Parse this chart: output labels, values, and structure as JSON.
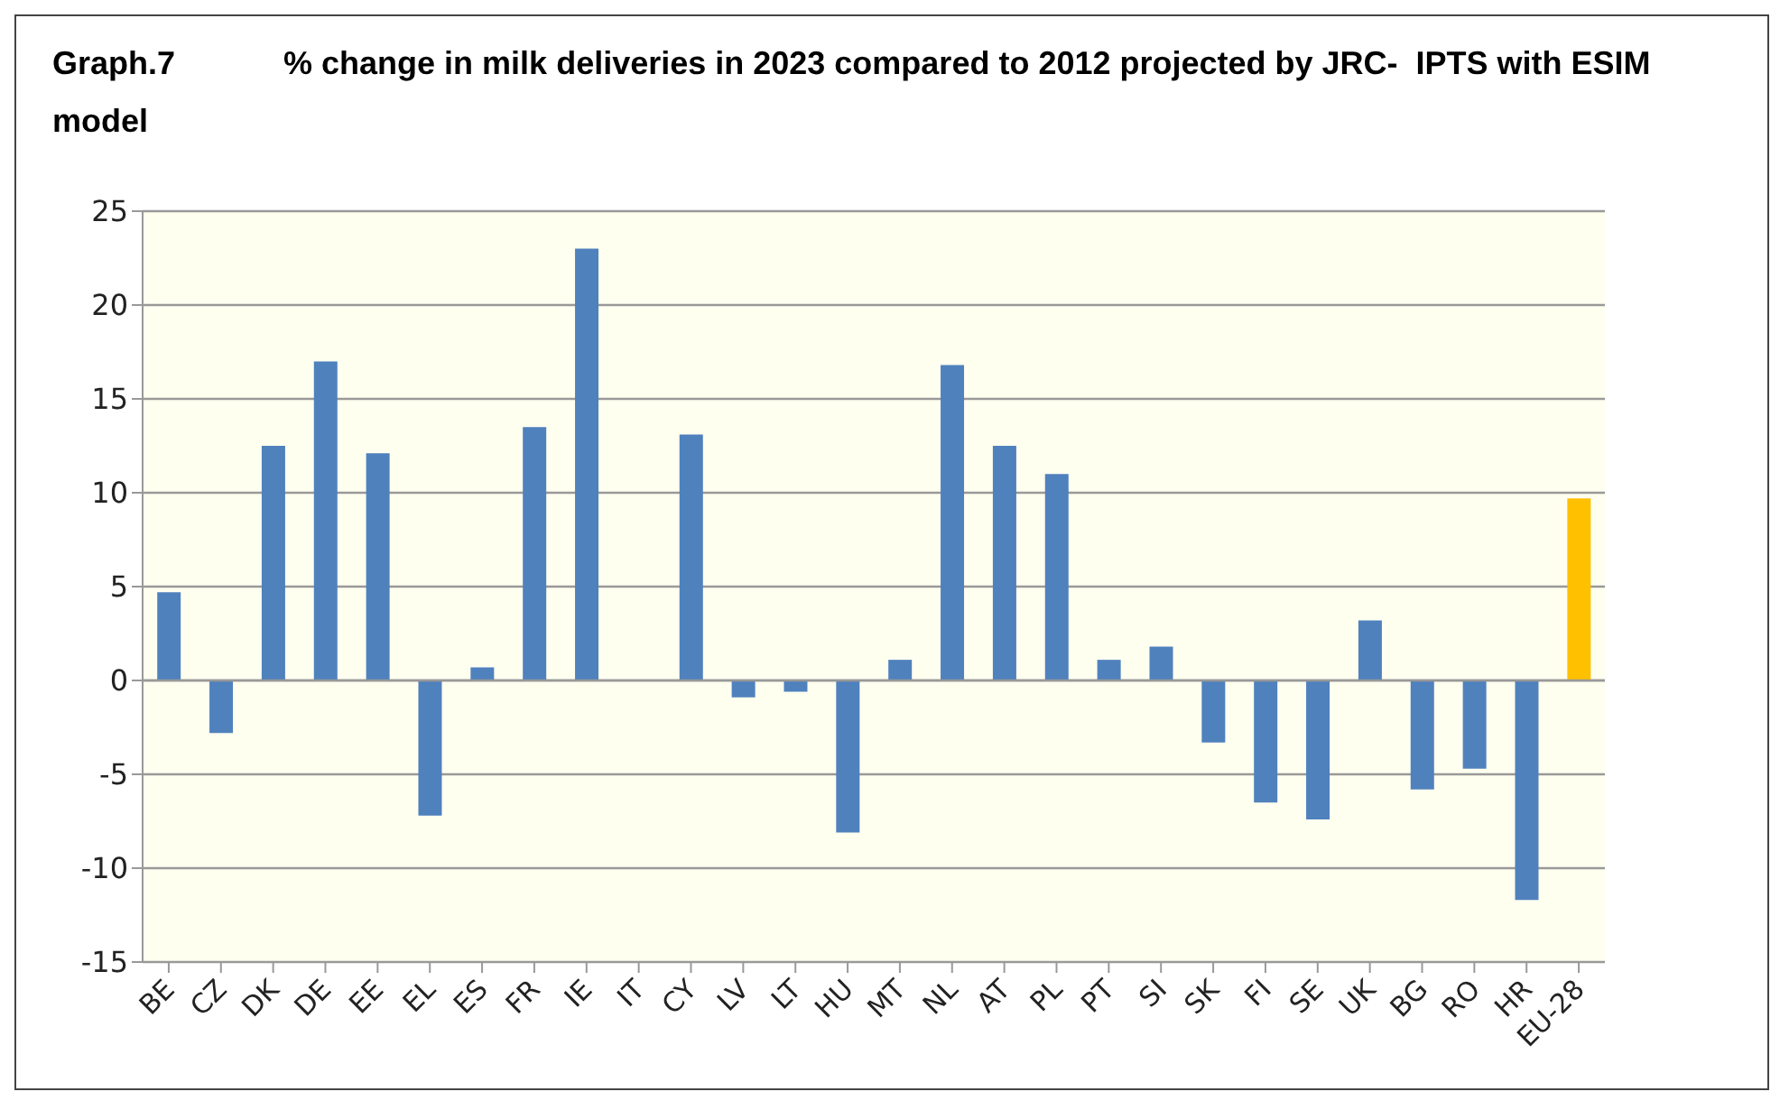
{
  "chart_data": {
    "type": "bar",
    "title": "Graph.7            % change in milk deliveries in 2023 compared to 2012 projected by JRC-  IPTS with ESIM model",
    "categories": [
      "BE",
      "CZ",
      "DK",
      "DE",
      "EE",
      "EL",
      "ES",
      "FR",
      "IE",
      "IT",
      "CY",
      "LV",
      "LT",
      "HU",
      "MT",
      "NL",
      "AT",
      "PL",
      "PT",
      "SI",
      "SK",
      "FI",
      "SE",
      "UK",
      "BG",
      "RO",
      "HR",
      "EU-28"
    ],
    "values": [
      4.7,
      -2.8,
      12.5,
      17,
      12.1,
      -7.2,
      0.7,
      13.5,
      23,
      0,
      13.1,
      -0.9,
      -0.6,
      -8.1,
      1.1,
      16.8,
      12.5,
      11,
      1.1,
      1.8,
      -3.3,
      -6.5,
      -7.4,
      3.2,
      -5.8,
      -4.7,
      -11.7,
      9.7
    ],
    "colors": [
      "#4f81bd",
      "#4f81bd",
      "#4f81bd",
      "#4f81bd",
      "#4f81bd",
      "#4f81bd",
      "#4f81bd",
      "#4f81bd",
      "#4f81bd",
      "#4f81bd",
      "#4f81bd",
      "#4f81bd",
      "#4f81bd",
      "#4f81bd",
      "#4f81bd",
      "#4f81bd",
      "#4f81bd",
      "#4f81bd",
      "#4f81bd",
      "#4f81bd",
      "#4f81bd",
      "#4f81bd",
      "#4f81bd",
      "#4f81bd",
      "#4f81bd",
      "#4f81bd",
      "#4f81bd",
      "#ffc000"
    ],
    "ylim": [
      -15,
      25
    ],
    "yticks": [
      -15,
      -10,
      -5,
      0,
      5,
      10,
      15,
      20,
      25
    ],
    "grid": "y"
  }
}
